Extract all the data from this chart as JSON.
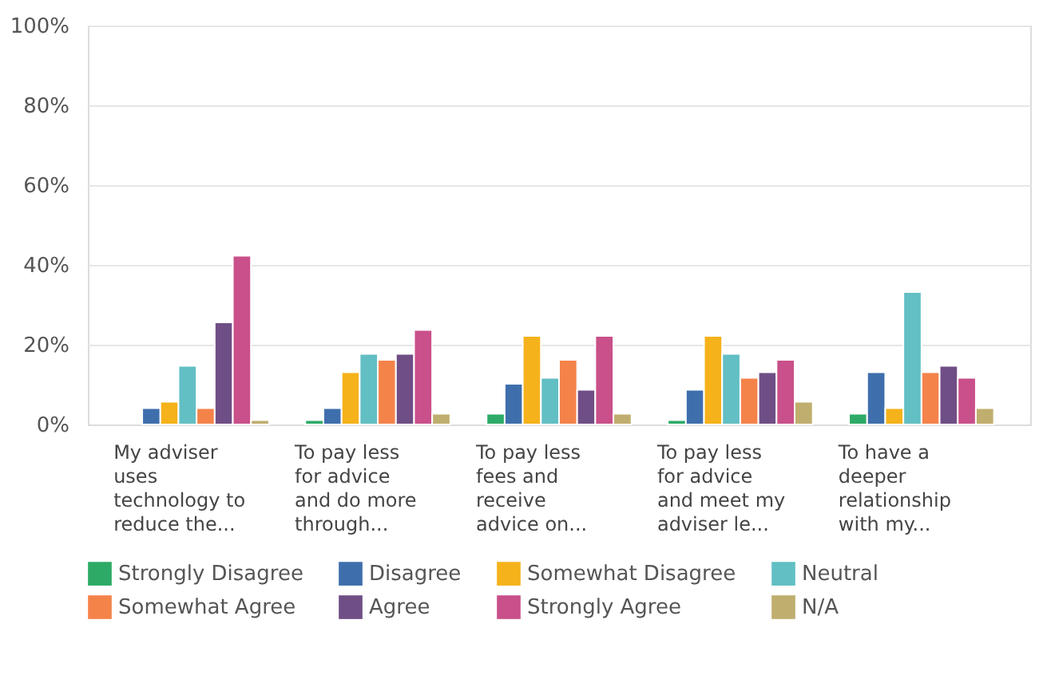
{
  "chart_data": {
    "type": "bar",
    "categories": [
      "My adviser uses technology to reduce the...",
      "To pay less for advice and do more through...",
      "To pay less fees and receive advice on...",
      "To pay less for advice and meet my adviser le...",
      "To have a deeper relationship with my..."
    ],
    "series": [
      {
        "name": "Strongly Disagree",
        "color": "#2dab66",
        "values": [
          null,
          1.1,
          2.7,
          1.1,
          2.7
        ]
      },
      {
        "name": "Disagree",
        "color": "#3e6fac",
        "values": [
          4.1,
          4.1,
          10.2,
          8.7,
          13.1
        ]
      },
      {
        "name": "Somewhat Disagree",
        "color": "#f5b21b",
        "values": [
          5.7,
          13.1,
          22.2,
          22.2,
          4.1
        ]
      },
      {
        "name": "Neutral",
        "color": "#62bfc3",
        "values": [
          14.7,
          17.7,
          11.7,
          17.7,
          33.2
        ]
      },
      {
        "name": "Somewhat Agree",
        "color": "#f4834a",
        "values": [
          4.1,
          16.2,
          16.2,
          11.7,
          13.1
        ]
      },
      {
        "name": "Agree",
        "color": "#6f4e85",
        "values": [
          25.6,
          17.7,
          8.7,
          13.1,
          14.7
        ]
      },
      {
        "name": "Strongly Agree",
        "color": "#c9508a",
        "values": [
          42.3,
          23.7,
          22.2,
          16.2,
          11.7
        ]
      },
      {
        "name": "N/A",
        "color": "#bfae6e",
        "values": [
          1.1,
          2.7,
          2.7,
          5.7,
          4.1
        ]
      }
    ],
    "ylim": [
      0,
      100
    ],
    "yticks": [
      {
        "value": 0,
        "label": "0%"
      },
      {
        "value": 20,
        "label": "20%"
      },
      {
        "value": 40,
        "label": "40%"
      },
      {
        "value": 60,
        "label": "60%"
      },
      {
        "value": 80,
        "label": "80%"
      },
      {
        "value": 100,
        "label": "100%"
      }
    ],
    "grid": "y",
    "legend": "bottom"
  }
}
